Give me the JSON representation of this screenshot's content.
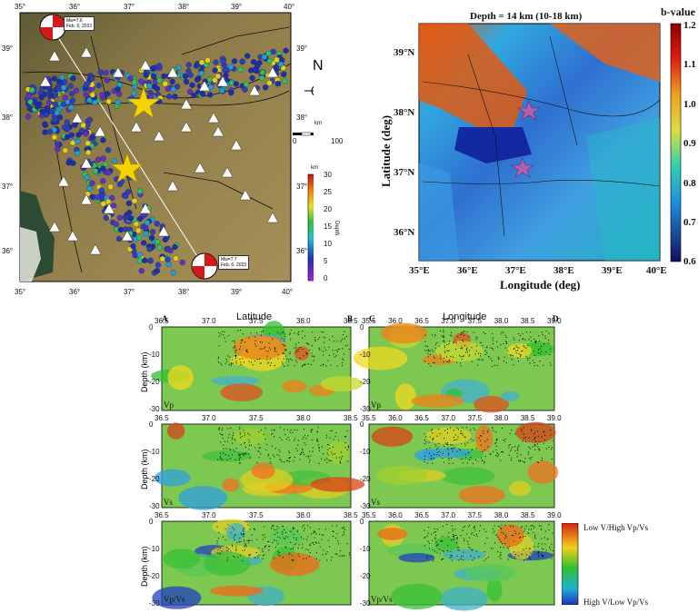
{
  "map_left": {
    "lon_ticks": [
      "35°",
      "36°",
      "37°",
      "38°",
      "39°",
      "40°"
    ],
    "lat_ticks": [
      "39°",
      "38°",
      "37°",
      "36°"
    ],
    "lat_ticks_right": [
      "39°",
      "38°",
      "37°",
      "36°"
    ],
    "north_label": "N",
    "scale_unit": "km",
    "scale_start": "0",
    "scale_end": "100",
    "event_top": {
      "line1": "Mw=7.6",
      "line2": "Feb. 6, 2023"
    },
    "event_bottom": {
      "line1": "Mw=7.7",
      "line2": "Feb. 6, 2023"
    },
    "depth_bar": {
      "unit": "km",
      "title": "Depth",
      "ticks": [
        "30",
        "25",
        "20",
        "15",
        "10",
        "5",
        "0"
      ]
    }
  },
  "map_right": {
    "title": "Depth = 14 km (10-18 km)",
    "xlabel": "Longitude (deg)",
    "ylabel": "Latitude (deg)",
    "lon_ticks": [
      "35°E",
      "36°E",
      "37°E",
      "38°E",
      "39°E",
      "40°E"
    ],
    "lat_ticks": [
      "39°N",
      "38°N",
      "37°N",
      "36°N"
    ],
    "colorbar": {
      "title": "b-value",
      "ticks": [
        "1.2",
        "1.1",
        "1.0",
        "0.9",
        "0.8",
        "0.7",
        "0.6"
      ]
    }
  },
  "cross_sections": {
    "ylabel": "Depth (km)",
    "left_title": "Latitude",
    "right_title": "Longitude",
    "corner_a": "A",
    "corner_b": "B",
    "corner_c": "C",
    "corner_d": "D",
    "lat_ticks": [
      "36.5",
      "37.0",
      "37.5",
      "38.0",
      "38.5"
    ],
    "lon_ticks": [
      "35.5",
      "36.0",
      "36.5",
      "37.0",
      "37.5",
      "38.0",
      "38.5",
      "39.0"
    ],
    "depth_ticks": [
      "0",
      "-10",
      "-20",
      "-30"
    ],
    "row_labels": [
      "Vp",
      "Vs",
      "Vp/Vs"
    ],
    "legend": {
      "top": "Low V/High Vp/Vs",
      "bottom": "High V/Low Vp/Vs"
    }
  },
  "colors": {
    "map_bg": "#8a7a45",
    "ocean": "#3d5a3a",
    "quake": "#1a2fb0",
    "star": "#f5d300",
    "bvalue_low": "#1030a0",
    "bvalue_high": "#c01010"
  }
}
